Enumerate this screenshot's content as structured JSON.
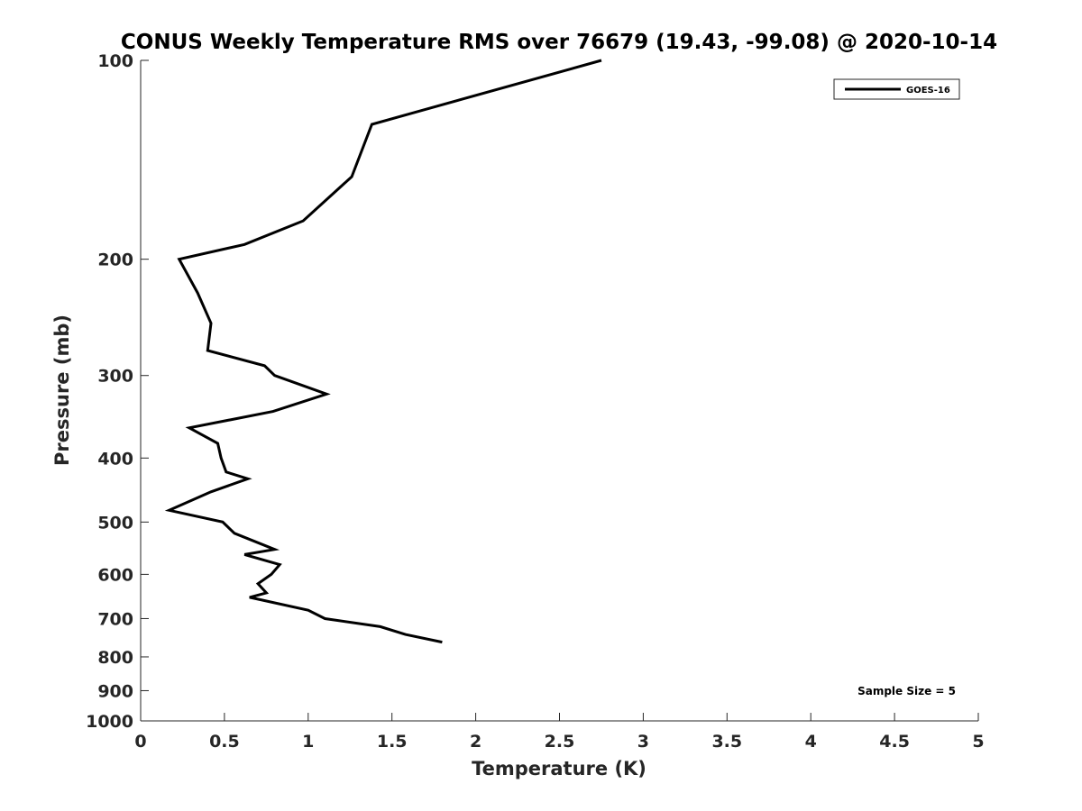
{
  "chart_data": {
    "type": "line",
    "title": "CONUS Weekly Temperature RMS over 76679 (19.43, -99.08) @ 2020-10-14",
    "xlabel": "Temperature (K)",
    "ylabel": "Pressure (mb)",
    "xlim": [
      0,
      5
    ],
    "ylim": [
      100,
      1000
    ],
    "y_scale": "log",
    "y_reversed": true,
    "grid": false,
    "legend_position": "top-right",
    "x_ticks": [
      0,
      0.5,
      1,
      1.5,
      2,
      2.5,
      3,
      3.5,
      4,
      4.5,
      5
    ],
    "x_tick_labels": [
      "0",
      "0.5",
      "1",
      "1.5",
      "2",
      "2.5",
      "3",
      "3.5",
      "4",
      "4.5",
      "5"
    ],
    "y_ticks": [
      100,
      200,
      300,
      400,
      500,
      600,
      700,
      800,
      900,
      1000
    ],
    "y_tick_labels": [
      "100",
      "200",
      "300",
      "400",
      "500",
      "600",
      "700",
      "800",
      "900",
      "1000"
    ],
    "series": [
      {
        "name": "GOES-16",
        "color": "#000000",
        "points": [
          [
            2.75,
            100
          ],
          [
            1.38,
            125
          ],
          [
            1.26,
            150
          ],
          [
            0.97,
            175
          ],
          [
            0.62,
            190
          ],
          [
            0.23,
            200
          ],
          [
            0.34,
            225
          ],
          [
            0.42,
            250
          ],
          [
            0.4,
            275
          ],
          [
            0.74,
            290
          ],
          [
            0.8,
            300
          ],
          [
            1.11,
            320
          ],
          [
            0.79,
            340
          ],
          [
            0.29,
            360
          ],
          [
            0.46,
            380
          ],
          [
            0.48,
            400
          ],
          [
            0.51,
            420
          ],
          [
            0.64,
            430
          ],
          [
            0.42,
            450
          ],
          [
            0.17,
            480
          ],
          [
            0.49,
            500
          ],
          [
            0.56,
            520
          ],
          [
            0.8,
            550
          ],
          [
            0.62,
            560
          ],
          [
            0.83,
            580
          ],
          [
            0.78,
            600
          ],
          [
            0.7,
            620
          ],
          [
            0.75,
            640
          ],
          [
            0.65,
            650
          ],
          [
            1.0,
            680
          ],
          [
            1.1,
            700
          ],
          [
            1.43,
            720
          ],
          [
            1.58,
            740
          ],
          [
            1.8,
            760
          ]
        ]
      }
    ],
    "annotation": "Sample Size = 5"
  }
}
